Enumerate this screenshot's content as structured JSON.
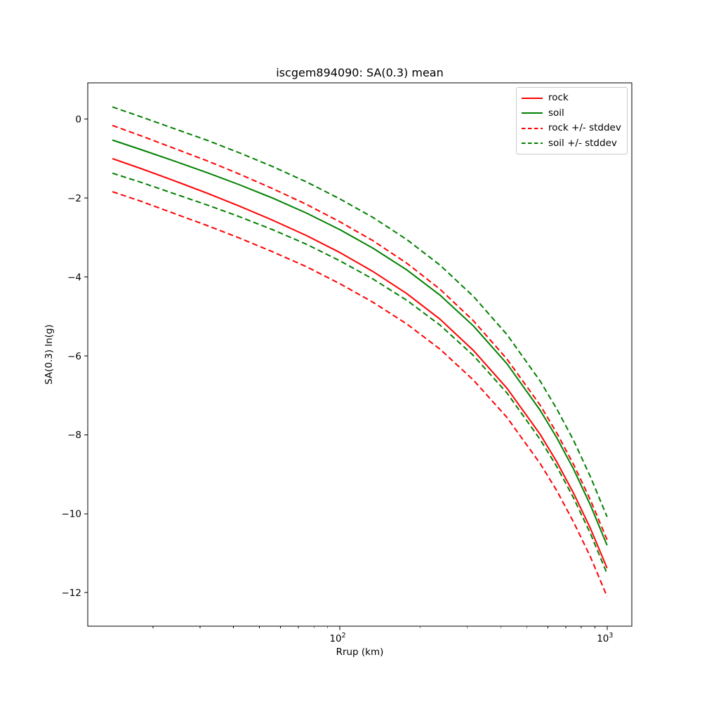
{
  "chart_data": {
    "type": "line",
    "title": "iscgem894090: SA(0.3) mean",
    "xlabel": "Rrup (km)",
    "ylabel": "SA(0.3) ln(g)",
    "x_scale": "log",
    "y_scale": "linear",
    "xlim": [
      11.4,
      1237
    ],
    "ylim": [
      -12.85,
      0.92
    ],
    "grid": "off",
    "axis_color": "#000000",
    "x": [
      14.1,
      18,
      24,
      32,
      42,
      56,
      75,
      100,
      133,
      178,
      237,
      316,
      422,
      562,
      649,
      750,
      866,
      1000
    ],
    "series": [
      {
        "name": "rock",
        "color": "#ff0000",
        "dash": false,
        "values": [
          -1.0,
          -1.25,
          -1.56,
          -1.88,
          -2.2,
          -2.56,
          -2.95,
          -3.38,
          -3.86,
          -4.42,
          -5.07,
          -5.86,
          -6.82,
          -7.99,
          -8.69,
          -9.49,
          -10.37,
          -11.38
        ]
      },
      {
        "name": "soil",
        "color": "#008000",
        "dash": false,
        "values": [
          -0.53,
          -0.77,
          -1.06,
          -1.36,
          -1.66,
          -2.0,
          -2.38,
          -2.8,
          -3.27,
          -3.82,
          -4.46,
          -5.24,
          -6.2,
          -7.38,
          -8.08,
          -8.88,
          -9.78,
          -10.8
        ]
      },
      {
        "name": "rock-plus-stddev",
        "color": "#ff0000",
        "dash": true,
        "values": [
          -0.16,
          -0.42,
          -0.74,
          -1.06,
          -1.39,
          -1.76,
          -2.16,
          -2.6,
          -3.08,
          -3.65,
          -4.31,
          -5.11,
          -6.08,
          -7.25,
          -7.96,
          -8.76,
          -9.65,
          -10.66
        ]
      },
      {
        "name": "rock-minus-stddev",
        "color": "#ff0000",
        "dash": true,
        "values": [
          -1.84,
          -2.08,
          -2.39,
          -2.7,
          -3.01,
          -3.36,
          -3.74,
          -4.17,
          -4.64,
          -5.19,
          -5.83,
          -6.61,
          -7.56,
          -8.73,
          -9.42,
          -10.22,
          -11.09,
          -12.1
        ]
      },
      {
        "name": "soil-plus-stddev",
        "color": "#008000",
        "dash": true,
        "values": [
          0.31,
          0.06,
          -0.24,
          -0.54,
          -0.85,
          -1.2,
          -1.59,
          -2.02,
          -2.49,
          -3.05,
          -3.7,
          -4.49,
          -5.46,
          -6.64,
          -7.35,
          -8.15,
          -9.06,
          -10.08
        ]
      },
      {
        "name": "soil-minus-stddev",
        "color": "#008000",
        "dash": true,
        "values": [
          -1.37,
          -1.6,
          -1.89,
          -2.18,
          -2.47,
          -2.8,
          -3.17,
          -3.59,
          -4.05,
          -4.59,
          -5.22,
          -5.99,
          -6.94,
          -8.12,
          -8.81,
          -9.61,
          -10.5,
          -11.52
        ]
      }
    ],
    "stddev": 0.84,
    "y_ticks": [
      {
        "value": 0,
        "label": "0"
      },
      {
        "value": -2,
        "label": "−2"
      },
      {
        "value": -4,
        "label": "−4"
      },
      {
        "value": -6,
        "label": "−6"
      },
      {
        "value": -8,
        "label": "−8"
      },
      {
        "value": -10,
        "label": "−10"
      },
      {
        "value": -12,
        "label": "−12"
      }
    ],
    "x_major_ticks": [
      {
        "value": 100,
        "base": "10",
        "exp": "2"
      },
      {
        "value": 1000,
        "base": "10",
        "exp": "3"
      }
    ],
    "x_minor_ticks": [
      20,
      30,
      40,
      50,
      60,
      70,
      80,
      90,
      200,
      300,
      400,
      500,
      600,
      700,
      800,
      900
    ],
    "legend": {
      "position": "upper right",
      "entries": [
        {
          "label": "rock",
          "color": "#ff0000",
          "dash": false
        },
        {
          "label": "soil",
          "color": "#008000",
          "dash": false
        },
        {
          "label": "rock +/- stddev",
          "color": "#ff0000",
          "dash": true
        },
        {
          "label": "soil +/- stddev",
          "color": "#008000",
          "dash": true
        }
      ]
    }
  }
}
